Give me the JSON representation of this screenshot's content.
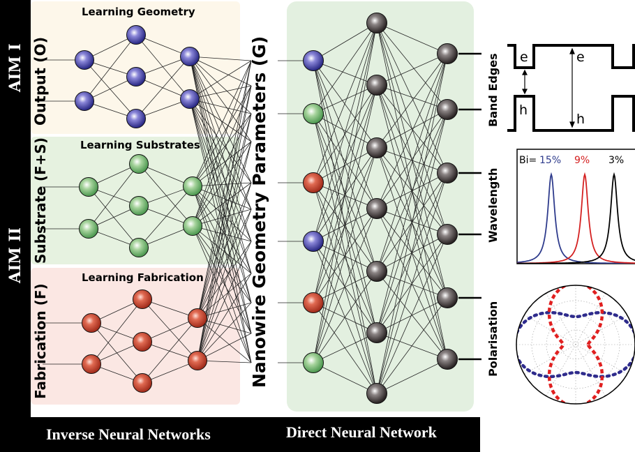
{
  "side_labels": {
    "aim1": "AIM I",
    "aim2": "AIM II",
    "output": "Output (O)",
    "substrate": "Substrate (F+S)",
    "fabrication": "Fabrication (F)"
  },
  "panels": {
    "geometry_title": "Learning Geometry",
    "substrates_title": "Learning Substrates",
    "fabrication_title": "Learning Fabrication"
  },
  "center_label": "Nanowire Geometry Parameters (G)",
  "output_labels": {
    "band_edges": "Band Edges",
    "wavelength": "Wavelength",
    "polarisation": "Polarisation"
  },
  "band_diagram": {
    "e_left": "e",
    "h_left": "h",
    "e_right": "e",
    "h_right": "h"
  },
  "spectra": {
    "prefix": "Bi=",
    "peaks": [
      {
        "label": "15%",
        "color": "#2e3b8c"
      },
      {
        "label": "9%",
        "color": "#d42020"
      },
      {
        "label": "3%",
        "color": "#000000"
      }
    ]
  },
  "bottom_bar": {
    "left": "Inverse Neural Networks",
    "right": "Direct Neural Network"
  },
  "colors": {
    "blue_node": "#3a3aa0",
    "green_node": "#6ab06a",
    "red_node": "#c8432f",
    "gray_node": "#3b3535",
    "geometry_bg": "#fdf7ea",
    "substrates_bg": "#e6f2e0",
    "fabrication_bg": "#fbe7e3",
    "direct_bg": "#e3f0e0"
  }
}
